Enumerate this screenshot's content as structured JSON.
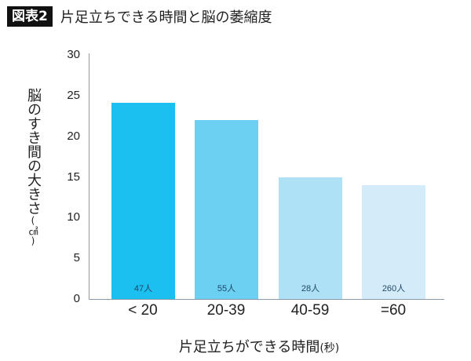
{
  "header": {
    "badge": "図表2",
    "title": "片足立ちできる時間と脳の萎縮度"
  },
  "axes": {
    "ylabel": "脳のすき間の大きさ",
    "yunit": "(㎠)",
    "xlabel": "片足立ちができる時間",
    "xunit": "(秒)",
    "yticks": [
      "0",
      "5",
      "10",
      "15",
      "20",
      "25",
      "30"
    ]
  },
  "bars": [
    {
      "category": "< 20",
      "value": 24,
      "count": "47人",
      "color": "#1bbff0"
    },
    {
      "category": "20-39",
      "value": 21.9,
      "count": "55人",
      "color": "#6cd0f3"
    },
    {
      "category": "40-59",
      "value": 14.9,
      "count": "28人",
      "color": "#aee0f6"
    },
    {
      "category": "=60",
      "value": 13.9,
      "count": "260人",
      "color": "#d4ecfa"
    }
  ],
  "chart_data": {
    "type": "bar",
    "title": "片足立ちできる時間と脳の萎縮度",
    "categories": [
      "< 20",
      "20-39",
      "40-59",
      "=60"
    ],
    "values": [
      24,
      21.9,
      14.9,
      13.9
    ],
    "annotations": [
      "47人",
      "55人",
      "28人",
      "260人"
    ],
    "xlabel": "片足立ちができる時間(秒)",
    "ylabel": "脳のすき間の大きさ(㎠)",
    "ylim": [
      0,
      30
    ],
    "yticks": [
      0,
      5,
      10,
      15,
      20,
      25,
      30
    ],
    "grid": false,
    "legend": "none"
  }
}
